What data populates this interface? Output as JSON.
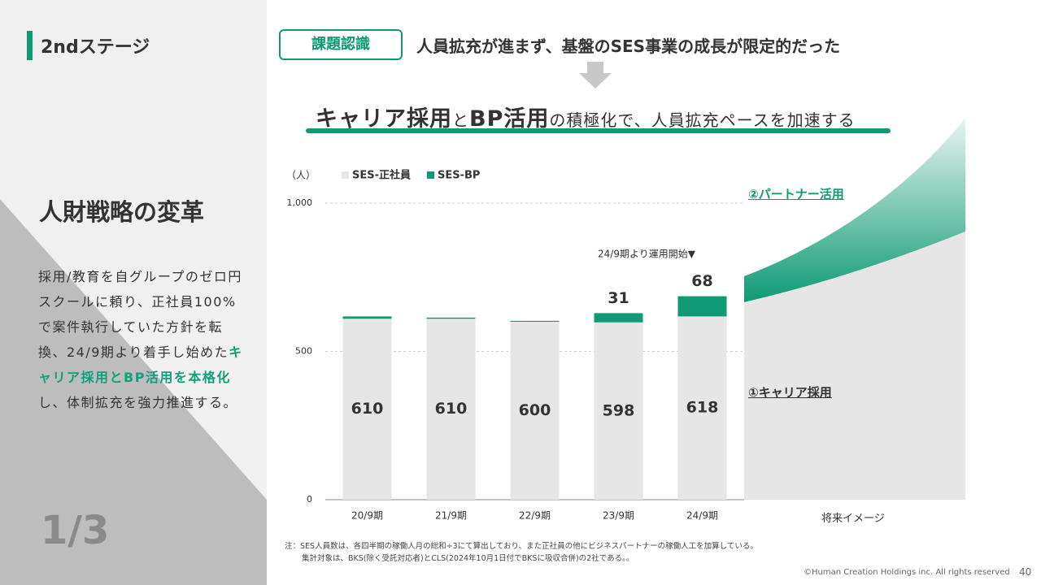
{
  "slide": {
    "stage": "2ndステージ",
    "side_title": "人財戦略の変革",
    "paragraph": [
      "採用/教育を自グループのゼロ円スクールに頼り、正社員100%で案件執行していた方針を転換、24/9期より着手し始めた",
      "キャリア採用とBP活用を本格化",
      "し、体制拡充を強力推進する。"
    ],
    "page_fraction": "1/3",
    "issue_tag": "課題認識",
    "issue_text": "人員拡充が進まず、基盤のSES事業の成長が限定的だった",
    "headline": [
      "キャリア採用",
      "と",
      "BP活用",
      "の積極化で、人員拡充ペースを加速する"
    ],
    "future_label": "将来イメージ",
    "future_partner": "②パートナー活用",
    "future_career": "①キャリア採用",
    "notes": [
      "注：SES人員数は、各四半期の稼働人月の総和÷3にて算出しており、また正社員の他にビジネスパートナーの稼働人工を加算している。",
      "集計対象は、BKS(除く受託対応者)とCLS(2024年10月1日付でBKSに吸収合併)の2社である。。"
    ],
    "copyright": "©Human Creation Holdings inc. All rights reserved",
    "page_number": "40"
  },
  "chart_data": {
    "type": "stacked_bar",
    "unit_label": "（人）",
    "annotation": "24/9期より運用開始▼",
    "categories": [
      "20/9期",
      "21/9期",
      "22/9期",
      "23/9期",
      "24/9期"
    ],
    "series": [
      {
        "name": "SES-正社員",
        "color": "#e6e6e6",
        "values": [
          610,
          610,
          600,
          598,
          618
        ]
      },
      {
        "name": "SES-BP",
        "color": "#0f9a74",
        "values": [
          8,
          4,
          3,
          31,
          68
        ]
      }
    ],
    "ylim": [
      0,
      1000
    ],
    "yticks": [
      0,
      500,
      {
        "value": 1000,
        "label": "1,000"
      }
    ],
    "grid": true
  }
}
